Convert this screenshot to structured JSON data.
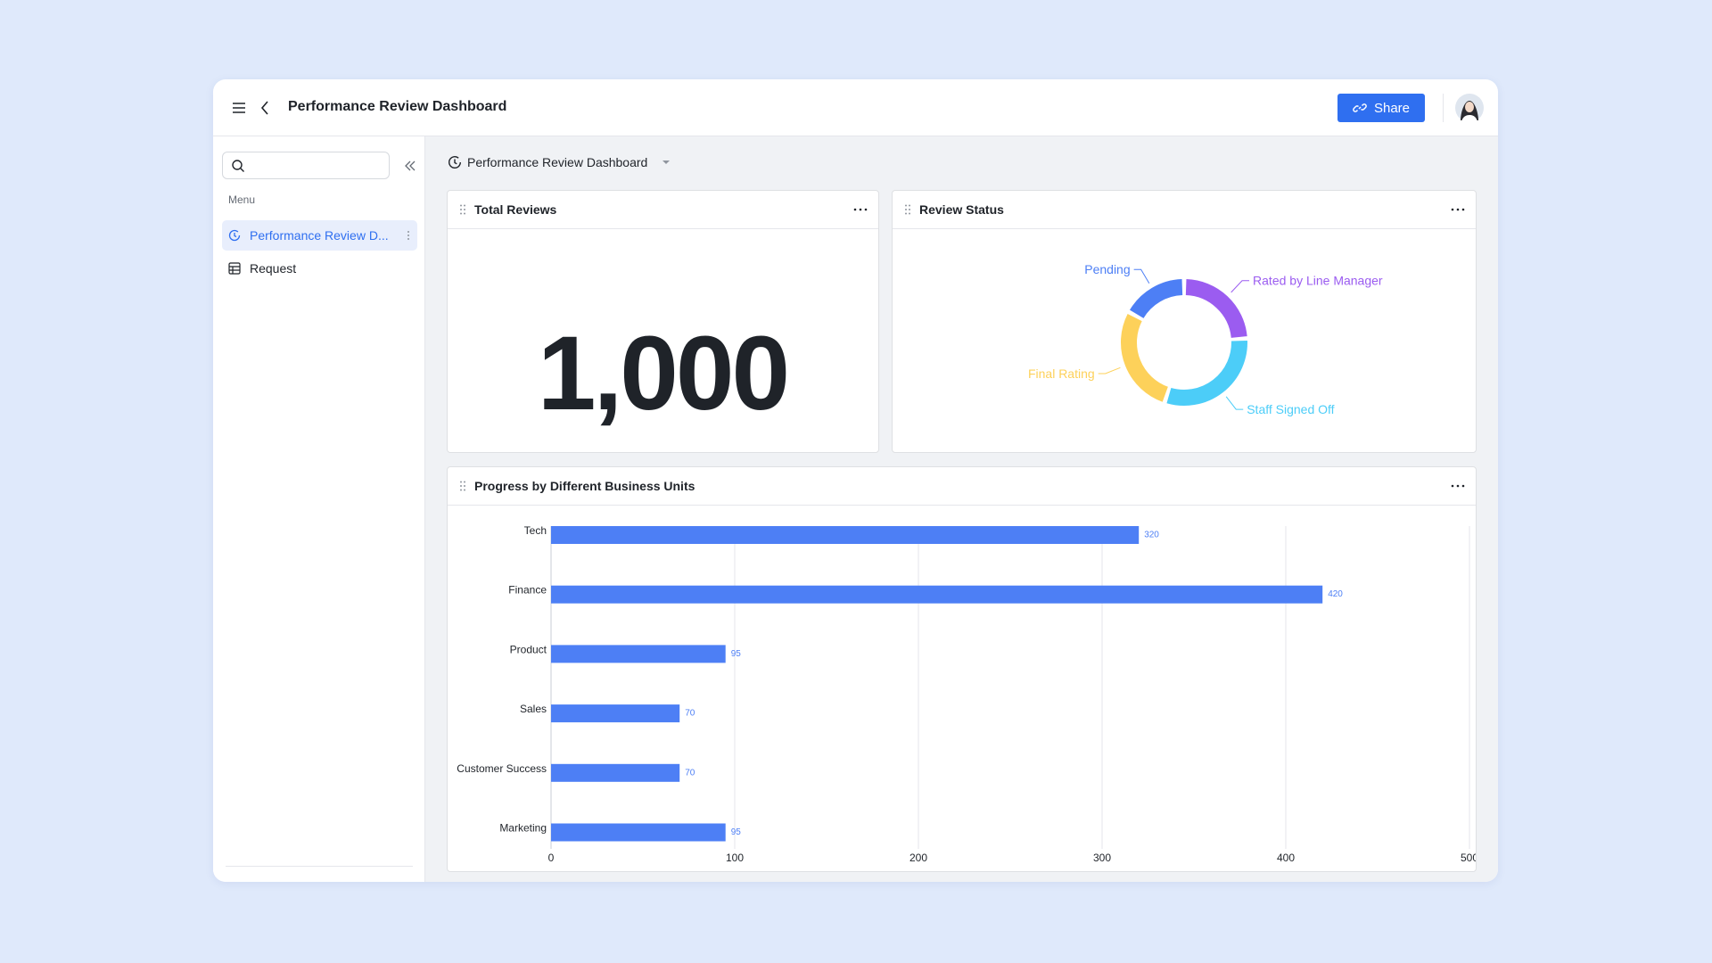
{
  "header": {
    "title": "Performance Review Dashboard",
    "share_button": "Share"
  },
  "sidebar": {
    "menu_label": "Menu",
    "items": [
      "Performance Review D...",
      "Request"
    ]
  },
  "dashboard_selector": "Performance Review Dashboard",
  "chart_data": [
    {
      "type": "kpi",
      "title": "Total Reviews",
      "value": 1000,
      "value_label": "1,000"
    },
    {
      "type": "donut",
      "title": "Review Status",
      "categories": [
        "Rated by Line Manager",
        "Staff Signed Off",
        "Final Rating",
        "Pending"
      ],
      "values": [
        24,
        31,
        28,
        17
      ],
      "colors": [
        "#9b5cf0",
        "#4ccdf8",
        "#fdd15a",
        "#4d7ff5"
      ]
    },
    {
      "type": "bar",
      "orientation": "horizontal",
      "title": "Progress by Different Business Units",
      "categories": [
        "Tech",
        "Finance",
        "Product",
        "Sales",
        "Customer Success",
        "Marketing"
      ],
      "values": [
        320,
        420,
        95,
        70,
        70,
        95
      ],
      "color": "#4d7ff5",
      "xlim": [
        0,
        500
      ],
      "xticks": [
        0,
        100,
        200,
        300,
        400,
        500
      ],
      "grid": true
    }
  ]
}
